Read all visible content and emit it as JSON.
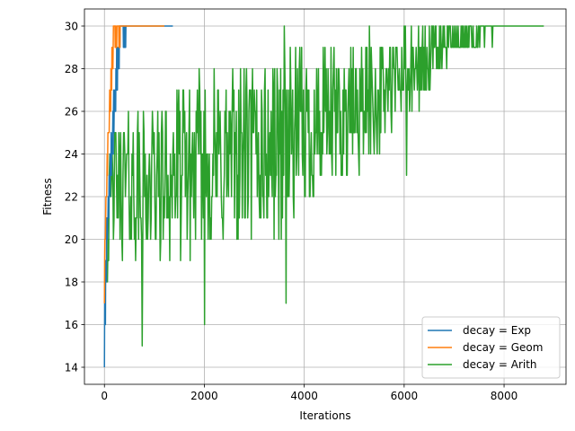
{
  "chart_data": {
    "type": "line",
    "title": "",
    "xlabel": "Iterations",
    "ylabel": "Fitness",
    "xlim": [
      -400,
      9240
    ],
    "ylim": [
      13.2,
      30.8
    ],
    "xticks": [
      0,
      2000,
      4000,
      6000,
      8000
    ],
    "xtick_labels": [
      "0",
      "2000",
      "4000",
      "6000",
      "8000"
    ],
    "yticks": [
      14,
      16,
      18,
      20,
      22,
      24,
      26,
      28,
      30
    ],
    "ytick_labels": [
      "14",
      "16",
      "18",
      "20",
      "22",
      "24",
      "26",
      "28",
      "30"
    ],
    "grid": true,
    "legend_position": "lower-right",
    "series": [
      {
        "name": "decay = Exp",
        "label": "decay = Exp",
        "color": "#1f77b4",
        "shape": {
          "kind": "converge",
          "start": 0,
          "end": 1370,
          "conv": 330,
          "y0": 14,
          "y1": 30,
          "noise": 0.6,
          "seed": 7
        }
      },
      {
        "name": "decay = Geom",
        "label": "decay = Geom",
        "color": "#ff7f0e",
        "shape": {
          "kind": "converge",
          "start": 0,
          "end": 1200,
          "conv": 200,
          "y0": 17,
          "y1": 30,
          "noise": 0.4,
          "seed": 13
        }
      },
      {
        "name": "decay = Arith",
        "label": "decay = Arith",
        "color": "#2ca02c",
        "shape": {
          "kind": "noisy",
          "start": 0,
          "end": 8800,
          "conv": 7800,
          "step": 12,
          "seed": 42,
          "trend": [
            [
              0,
              18
            ],
            [
              150,
              22.5
            ],
            [
              800,
              22.5
            ],
            [
              2000,
              23.5
            ],
            [
              3000,
              24
            ],
            [
              4000,
              25
            ],
            [
              5000,
              26
            ],
            [
              6000,
              27.5
            ],
            [
              7000,
              29.3
            ],
            [
              7800,
              30
            ],
            [
              8800,
              30
            ]
          ],
          "amp": [
            [
              0,
              2
            ],
            [
              500,
              3.6
            ],
            [
              2000,
              4.2
            ],
            [
              3500,
              4.5
            ],
            [
              5000,
              3
            ],
            [
              6000,
              2.2
            ],
            [
              7000,
              1
            ],
            [
              7800,
              0.5
            ],
            [
              8800,
              0
            ]
          ],
          "dips": [
            [
              760,
              15
            ],
            [
              2000,
              16
            ],
            [
              3640,
              17
            ],
            [
              6050,
              23
            ]
          ],
          "peaks": [
            [
              3600,
              30
            ],
            [
              5300,
              30
            ],
            [
              6000,
              30
            ]
          ]
        }
      }
    ]
  }
}
